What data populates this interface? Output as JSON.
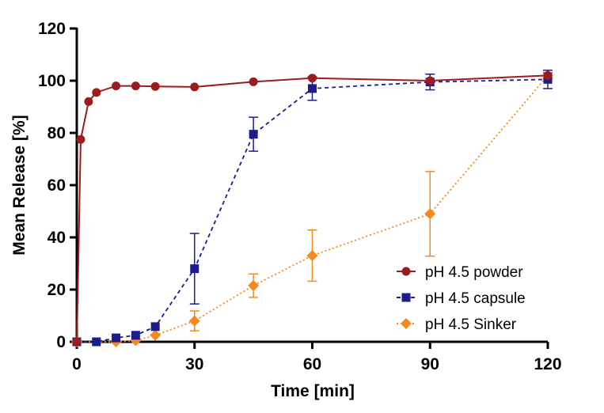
{
  "chart_data": {
    "type": "line",
    "xlabel": "Time [min]",
    "ylabel": "Mean Release [%]",
    "xlim": [
      0,
      120
    ],
    "ylim": [
      0,
      120
    ],
    "x_ticks": [
      0,
      30,
      60,
      90,
      120
    ],
    "y_ticks": [
      0,
      20,
      40,
      60,
      80,
      100,
      120
    ],
    "grid": false,
    "legend_position": "bottom-right",
    "series": [
      {
        "name": "pH 4.5 powder",
        "color": "#9b1c1c",
        "marker": "circle",
        "line_style": "solid",
        "x": [
          0,
          1,
          3,
          5,
          10,
          15,
          20,
          30,
          45,
          60,
          90,
          120
        ],
        "y": [
          0,
          77.5,
          92,
          95.5,
          98,
          98,
          97.8,
          97.6,
          99.6,
          101,
          100,
          102
        ],
        "error": [
          0,
          0,
          0,
          0,
          0,
          0,
          0,
          0,
          0,
          0,
          0,
          1
        ]
      },
      {
        "name": "pH 4.5 capsule",
        "color": "#1c1c8c",
        "marker": "square",
        "line_style": "dashed",
        "x": [
          0,
          5,
          10,
          15,
          20,
          30,
          45,
          60,
          90,
          120
        ],
        "y": [
          0,
          0,
          1.5,
          2.5,
          5.8,
          28,
          79.5,
          97,
          99.5,
          100.5
        ],
        "error": [
          0,
          0,
          0,
          0,
          0,
          13.5,
          6.5,
          4.5,
          3,
          3.5
        ]
      },
      {
        "name": "pH 4.5 Sinker",
        "color": "#f28a1e",
        "marker": "diamond",
        "line_style": "dotted",
        "x": [
          0,
          10,
          15,
          20,
          30,
          45,
          60,
          90,
          120
        ],
        "y": [
          0,
          0,
          0.5,
          2.5,
          8,
          21.5,
          33,
          49,
          102
        ],
        "error": [
          0,
          0,
          0,
          0,
          3.8,
          4.5,
          9.8,
          16.2,
          0
        ]
      }
    ]
  }
}
